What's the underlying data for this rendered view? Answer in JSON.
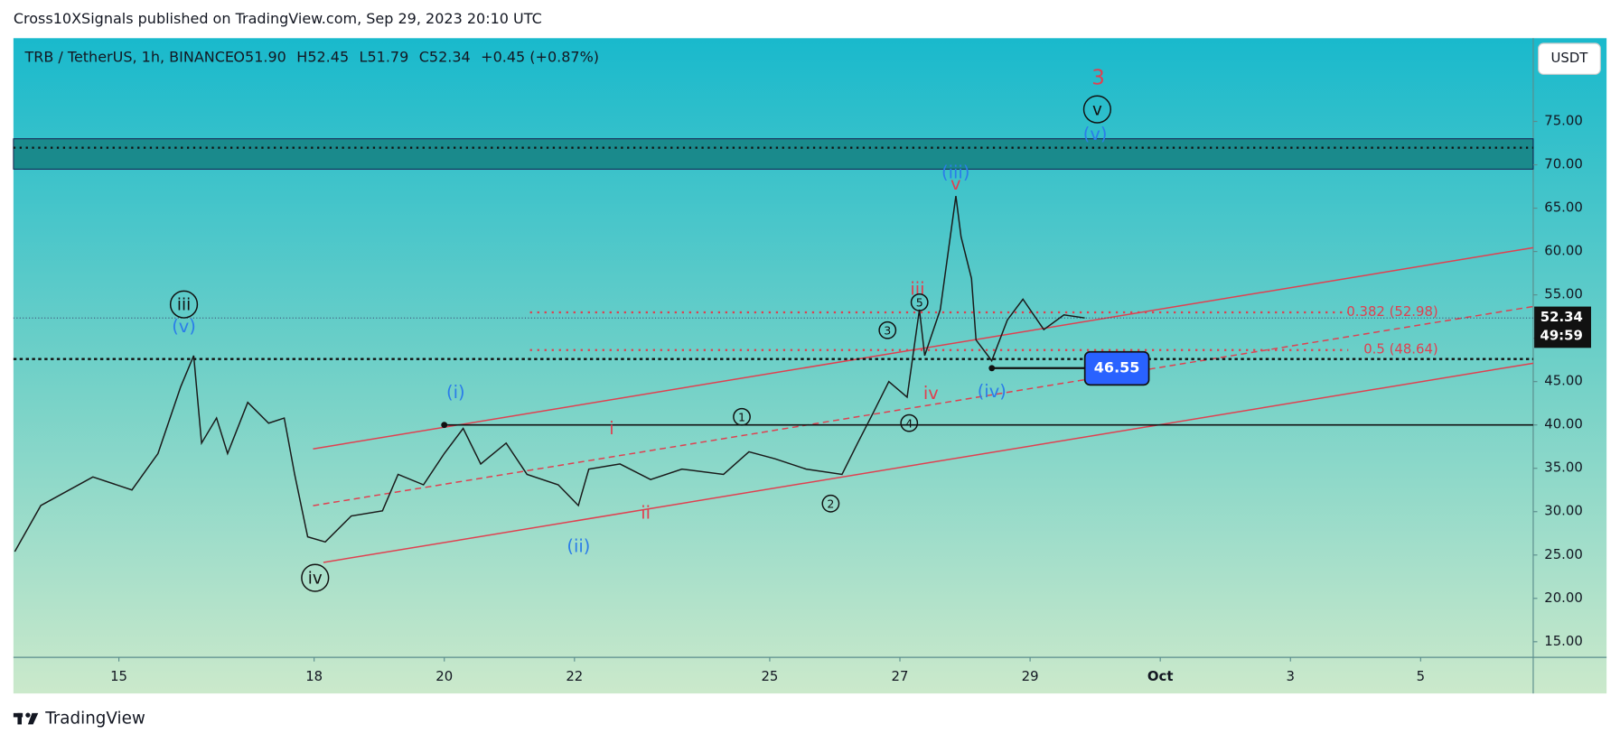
{
  "header": {
    "publisher": "Cross10XSignals published on TradingView.com, Sep 29, 2023 20:10 UTC",
    "logo": "TradingView"
  },
  "chart_data": {
    "type": "line",
    "title": "TRB / TetherUS, 1h, BINANCE",
    "legend_values": [
      "O51.90",
      "H52.45",
      "L51.79",
      "C52.34",
      "+0.45 (+0.87%)"
    ],
    "currency": "USDT",
    "last_price": 52.34,
    "countdown": "49:59",
    "color": "#1a1a1a",
    "x": [
      13.4,
      13.8,
      14.6,
      15.2,
      15.6,
      15.95,
      16.15,
      16.27,
      16.5,
      16.67,
      16.98,
      17.3,
      17.54,
      17.7,
      17.9,
      18.17,
      18.57,
      19.05,
      19.29,
      19.68,
      20.0,
      20.29,
      20.56,
      20.95,
      21.27,
      21.75,
      22.06,
      22.22,
      22.7,
      23.17,
      23.65,
      24.29,
      24.68,
      25.08,
      25.56,
      26.11,
      26.35,
      26.59,
      26.83,
      27.11,
      27.3,
      27.38,
      27.62,
      27.86,
      27.94,
      28.1,
      28.17,
      28.41,
      28.65,
      28.89,
      29.21,
      29.52,
      29.84
    ],
    "values": [
      25.4,
      30.7,
      34.0,
      32.5,
      36.7,
      44.4,
      48.0,
      37.9,
      40.8,
      36.7,
      42.6,
      40.2,
      40.8,
      34.3,
      27.1,
      26.5,
      29.5,
      30.1,
      34.3,
      33.1,
      36.7,
      39.6,
      35.5,
      37.9,
      34.3,
      33.1,
      30.7,
      34.9,
      35.5,
      33.7,
      34.9,
      34.3,
      36.9,
      36.1,
      34.9,
      34.3,
      37.9,
      41.4,
      45.0,
      43.2,
      53.3,
      48.0,
      53.3,
      66.4,
      61.7,
      56.9,
      49.8,
      47.4,
      52.1,
      54.5,
      51.0,
      52.7,
      52.34
    ],
    "xlim": [
      13.38,
      36.73
    ],
    "xticks": [
      15,
      18,
      20,
      22,
      25,
      27,
      29,
      {
        "value": 31,
        "label": "Oct"
      },
      {
        "value": 33,
        "label": "3"
      },
      {
        "value": 35,
        "label": "5"
      }
    ],
    "ylim": [
      13.2,
      84.6
    ],
    "yticks": [
      {
        "value": 15,
        "label": "15.00"
      },
      {
        "value": 20,
        "label": "20.00"
      },
      {
        "value": 25,
        "label": "25.00"
      },
      {
        "value": 30,
        "label": "30.00"
      },
      {
        "value": 35,
        "label": "35.00"
      },
      {
        "value": 40,
        "label": "40.00"
      },
      {
        "value": 45,
        "label": "45.00"
      },
      {
        "value": 50,
        "label": "50.00"
      },
      {
        "value": 55,
        "label": "55.00"
      },
      {
        "value": 60,
        "label": "60.00"
      },
      {
        "value": 65,
        "label": "65.00"
      },
      {
        "value": 70,
        "label": "70.00"
      },
      {
        "value": 75,
        "label": "75.00"
      }
    ],
    "horizontal_lines": [
      40,
      47.6
    ],
    "zone": [
      69.5,
      73
    ],
    "fib_levels": [
      {
        "label": "0.382 (52.98)",
        "value": 52.98
      },
      {
        "label": "0.5 (48.64)",
        "value": 48.64
      }
    ],
    "price_marker": 46.55,
    "wave_labels": [
      "3",
      "v",
      "(v)",
      "(iii)",
      "v",
      "iii",
      "5",
      "3",
      "4",
      "1",
      "2",
      "iv",
      "(iv)",
      "i",
      "ii",
      "(i)",
      "(ii)",
      "iii",
      "(v)",
      "iv"
    ]
  }
}
